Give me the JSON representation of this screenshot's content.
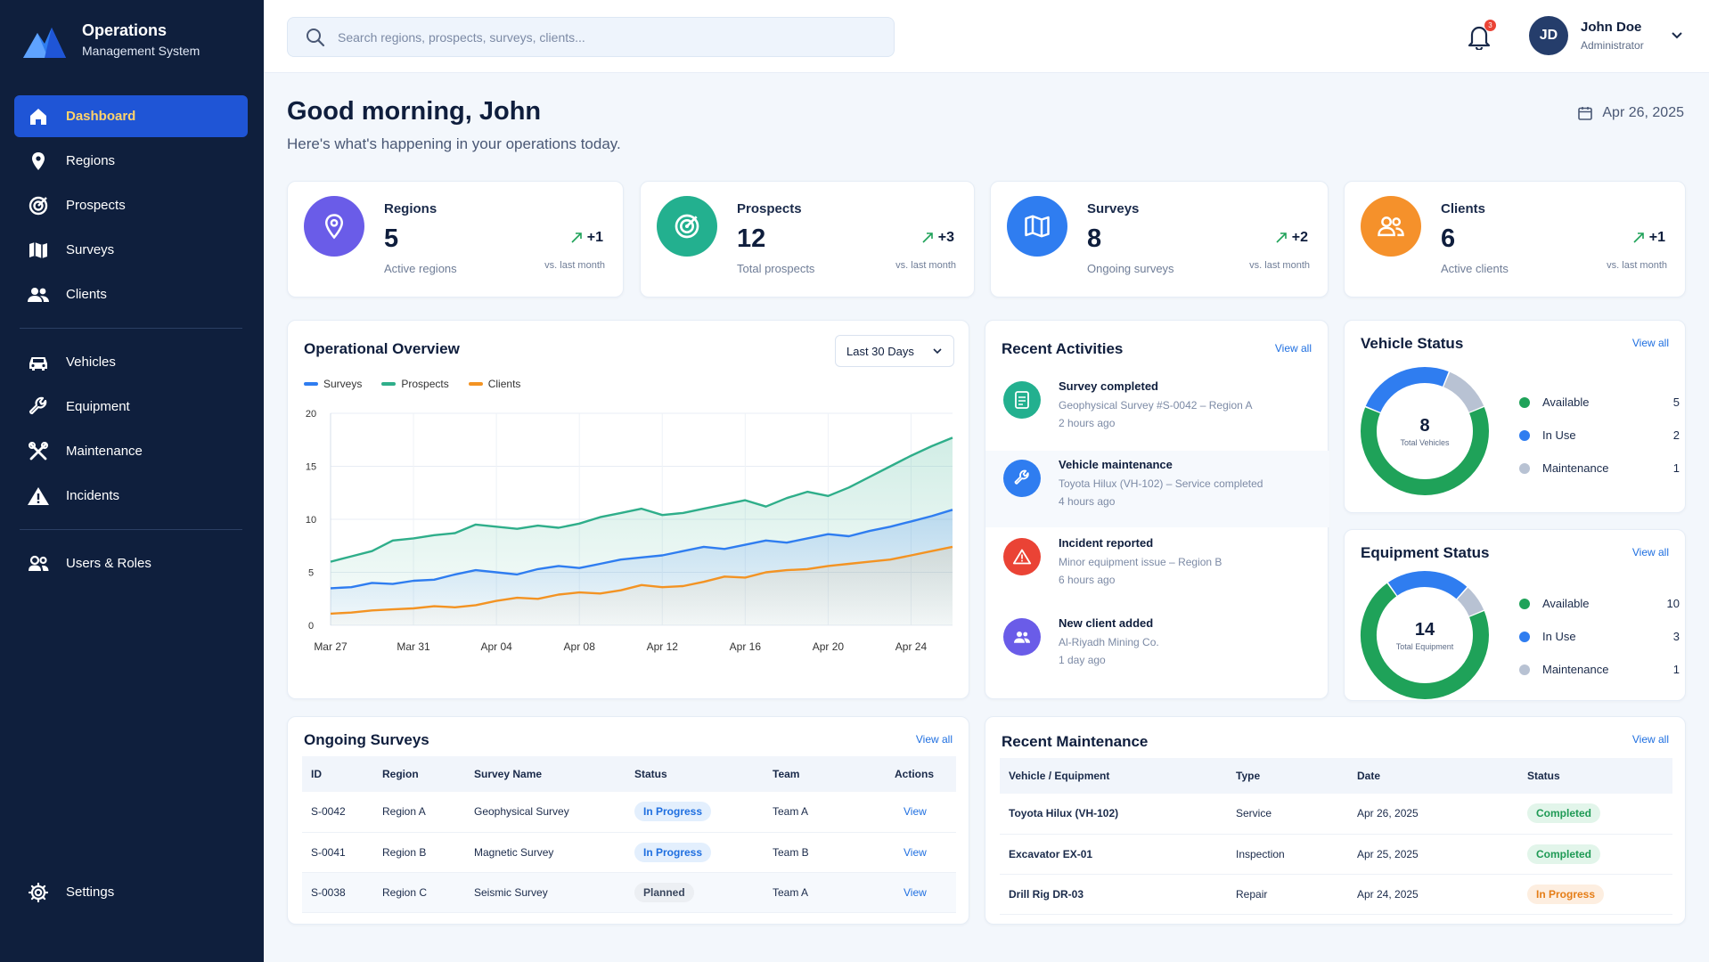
{
  "brand": {
    "title": "Operations",
    "subtitle": "Management System"
  },
  "nav": {
    "items": [
      {
        "label": "Dashboard",
        "icon": "home-icon"
      },
      {
        "label": "Regions",
        "icon": "map-pin-icon"
      },
      {
        "label": "Prospects",
        "icon": "target-icon"
      },
      {
        "label": "Surveys",
        "icon": "map-icon"
      },
      {
        "label": "Clients",
        "icon": "users-icon"
      },
      {
        "label": "Vehicles",
        "icon": "car-icon"
      },
      {
        "label": "Equipment",
        "icon": "wrench-icon"
      },
      {
        "label": "Maintenance",
        "icon": "tools-icon"
      },
      {
        "label": "Incidents",
        "icon": "warning-icon"
      },
      {
        "label": "Users & Roles",
        "icon": "user-group-icon"
      }
    ],
    "settings": "Settings"
  },
  "search": {
    "placeholder": "Search regions, prospects, surveys, clients..."
  },
  "notifications": {
    "count": "3"
  },
  "user": {
    "initials": "JD",
    "name": "John Doe",
    "role": "Administrator"
  },
  "greeting": {
    "title": "Good morning, John",
    "subtitle": "Here's what's happening in your operations today.",
    "date": "Apr 26, 2025"
  },
  "stats": [
    {
      "label": "Regions",
      "value": "5",
      "sub": "Active regions",
      "trend": "+1",
      "vs": "vs. last month",
      "color": "#6a5ce8"
    },
    {
      "label": "Prospects",
      "value": "12",
      "sub": "Total prospects",
      "trend": "+3",
      "vs": "vs. last month",
      "color": "#23b08f"
    },
    {
      "label": "Surveys",
      "value": "8",
      "sub": "Ongoing surveys",
      "trend": "+2",
      "vs": "vs. last month",
      "color": "#2f7df0"
    },
    {
      "label": "Clients",
      "value": "6",
      "sub": "Active clients",
      "trend": "+1",
      "vs": "vs. last month",
      "color": "#f5912b"
    }
  ],
  "overview": {
    "title": "Operational Overview",
    "range": "Last 30 Days"
  },
  "chart_data": {
    "type": "line",
    "title": "Operational Overview",
    "x": [
      "Mar 27",
      "Mar 28",
      "Mar 29",
      "Mar 30",
      "Mar 31",
      "Apr 01",
      "Apr 02",
      "Apr 03",
      "Apr 04",
      "Apr 05",
      "Apr 06",
      "Apr 07",
      "Apr 08",
      "Apr 09",
      "Apr 10",
      "Apr 11",
      "Apr 12",
      "Apr 13",
      "Apr 14",
      "Apr 15",
      "Apr 16",
      "Apr 17",
      "Apr 18",
      "Apr 19",
      "Apr 20",
      "Apr 21",
      "Apr 22",
      "Apr 23",
      "Apr 24",
      "Apr 25",
      "Apr 26"
    ],
    "xticks": [
      "Mar 27",
      "Mar 31",
      "Apr 04",
      "Apr 08",
      "Apr 12",
      "Apr 16",
      "Apr 20",
      "Apr 24"
    ],
    "yticks": [
      0,
      5,
      10,
      15,
      20
    ],
    "ylim": [
      0,
      20
    ],
    "legend": "top-left",
    "grid": true,
    "series": [
      {
        "name": "Surveys",
        "color": "#2f7df0",
        "values": [
          3.5,
          3.6,
          4,
          3.9,
          4.2,
          4.3,
          4.8,
          5.2,
          5,
          4.8,
          5.3,
          5.6,
          5.4,
          5.8,
          6.2,
          6.4,
          6.6,
          7,
          7.4,
          7.2,
          7.6,
          8,
          7.8,
          8.2,
          8.6,
          8.4,
          8.9,
          9.3,
          9.8,
          10.3,
          10.9
        ]
      },
      {
        "name": "Prospects",
        "color": "#2fae8a",
        "values": [
          6,
          6.5,
          7,
          8,
          8.2,
          8.5,
          8.7,
          9.5,
          9.3,
          9.1,
          9.4,
          9.2,
          9.6,
          10.2,
          10.6,
          11,
          10.4,
          10.6,
          11,
          11.4,
          11.8,
          11.2,
          12,
          12.6,
          12.2,
          13,
          14,
          15,
          16,
          16.9,
          17.7
        ]
      },
      {
        "name": "Clients",
        "color": "#f39323",
        "values": [
          1.1,
          1.2,
          1.4,
          1.5,
          1.6,
          1.8,
          1.7,
          1.9,
          2.3,
          2.6,
          2.5,
          2.9,
          3.1,
          3,
          3.3,
          3.8,
          3.6,
          3.7,
          4.1,
          4.6,
          4.5,
          5,
          5.2,
          5.3,
          5.6,
          5.8,
          6,
          6.2,
          6.6,
          7,
          7.4
        ]
      }
    ]
  },
  "activities": {
    "title": "Recent Activities",
    "view_all": "View all",
    "items": [
      {
        "title": "Survey completed",
        "desc": "Geophysical Survey #S-0042 – Region A",
        "ago": "2 hours ago",
        "color": "#23b08f"
      },
      {
        "title": "Vehicle maintenance",
        "desc": "Toyota Hilux (VH-102) – Service completed",
        "ago": "4 hours ago",
        "color": "#2f7df0"
      },
      {
        "title": "Incident reported",
        "desc": "Minor equipment issue – Region B",
        "ago": "6 hours ago",
        "color": "#ea4335"
      },
      {
        "title": "New client added",
        "desc": "Al-Riyadh Mining Co.",
        "ago": "1 day ago",
        "color": "#6a5ce8"
      }
    ]
  },
  "vehicle_status": {
    "title": "Vehicle Status",
    "view_all": "View all",
    "total": "8",
    "total_label": "Total Vehicles",
    "items": [
      {
        "label": "Available",
        "value": 5,
        "color": "#1fa259"
      },
      {
        "label": "In Use",
        "value": 2,
        "color": "#2f7df0"
      },
      {
        "label": "Maintenance",
        "value": 1,
        "color": "#b8c2d3"
      }
    ]
  },
  "equipment_status": {
    "title": "Equipment Status",
    "view_all": "View all",
    "total": "14",
    "total_label": "Total Equipment",
    "items": [
      {
        "label": "Available",
        "value": 10,
        "color": "#1fa259"
      },
      {
        "label": "In Use",
        "value": 3,
        "color": "#2f7df0"
      },
      {
        "label": "Maintenance",
        "value": 1,
        "color": "#b8c2d3"
      }
    ]
  },
  "surveys": {
    "title": "Ongoing Surveys",
    "view_all": "View all",
    "headers": [
      "ID",
      "Region",
      "Survey Name",
      "Status",
      "Team",
      "Actions"
    ],
    "rows": [
      {
        "id": "S-0042",
        "region": "Region A",
        "name": "Geophysical Survey",
        "status": "In Progress",
        "team": "Team A",
        "action": "View"
      },
      {
        "id": "S-0041",
        "region": "Region B",
        "name": "Magnetic Survey",
        "status": "In Progress",
        "team": "Team B",
        "action": "View"
      },
      {
        "id": "S-0038",
        "region": "Region C",
        "name": "Seismic Survey",
        "status": "Planned",
        "team": "Team A",
        "action": "View"
      }
    ]
  },
  "maintenance": {
    "title": "Recent Maintenance",
    "view_all": "View all",
    "headers": [
      "Vehicle / Equipment",
      "Type",
      "Date",
      "Status"
    ],
    "rows": [
      {
        "item": "Toyota Hilux (VH-102)",
        "type": "Service",
        "date": "Apr 26, 2025",
        "status": "Completed"
      },
      {
        "item": "Excavator EX-01",
        "type": "Inspection",
        "date": "Apr 25, 2025",
        "status": "Completed"
      },
      {
        "item": "Drill Rig DR-03",
        "type": "Repair",
        "date": "Apr 24, 2025",
        "status": "In Progress"
      }
    ]
  }
}
